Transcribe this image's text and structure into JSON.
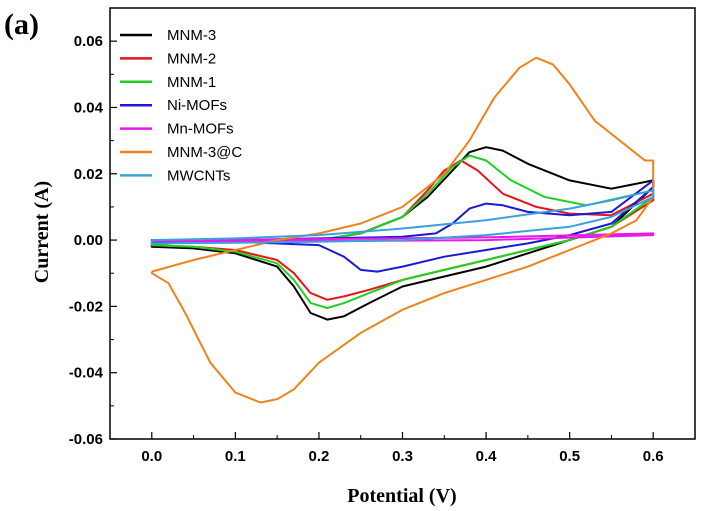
{
  "panel_label": "(a)",
  "chart_data": {
    "type": "line",
    "title": "",
    "xlabel": "Potential (V)",
    "ylabel": "Current (A)",
    "xlim": [
      -0.05,
      0.65
    ],
    "ylim": [
      -0.06,
      0.07
    ],
    "xticks": [
      0.0,
      0.1,
      0.2,
      0.3,
      0.4,
      0.5,
      0.6
    ],
    "xtick_labels": [
      "0.0",
      "0.1",
      "0.2",
      "0.3",
      "0.4",
      "0.5",
      "0.6"
    ],
    "yticks": [
      -0.06,
      -0.04,
      -0.02,
      0.0,
      0.02,
      0.04,
      0.06
    ],
    "ytick_labels": [
      "-0.06",
      "-0.04",
      "-0.02",
      "0.00",
      "0.02",
      "0.04",
      "0.06"
    ],
    "grid": false,
    "legend_position": "top-left",
    "series": [
      {
        "name": "MNM-3",
        "color": "#000000",
        "points": [
          [
            0.0,
            -0.001
          ],
          [
            0.1,
            -0.0005
          ],
          [
            0.2,
            0.0
          ],
          [
            0.25,
            0.002
          ],
          [
            0.3,
            0.007
          ],
          [
            0.33,
            0.013
          ],
          [
            0.36,
            0.021
          ],
          [
            0.38,
            0.0265
          ],
          [
            0.4,
            0.028
          ],
          [
            0.42,
            0.027
          ],
          [
            0.45,
            0.023
          ],
          [
            0.5,
            0.018
          ],
          [
            0.55,
            0.0155
          ],
          [
            0.6,
            0.018
          ],
          [
            0.6,
            0.016
          ],
          [
            0.55,
            0.004
          ],
          [
            0.5,
            0.0
          ],
          [
            0.45,
            -0.004
          ],
          [
            0.4,
            -0.008
          ],
          [
            0.35,
            -0.011
          ],
          [
            0.3,
            -0.014
          ],
          [
            0.26,
            -0.019
          ],
          [
            0.23,
            -0.023
          ],
          [
            0.21,
            -0.024
          ],
          [
            0.19,
            -0.022
          ],
          [
            0.17,
            -0.014
          ],
          [
            0.15,
            -0.008
          ],
          [
            0.1,
            -0.004
          ],
          [
            0.05,
            -0.0025
          ],
          [
            0.0,
            -0.002
          ],
          [
            0.0,
            -0.001
          ]
        ]
      },
      {
        "name": "MNM-2",
        "color": "#e8151a",
        "points": [
          [
            0.0,
            -0.001
          ],
          [
            0.1,
            -0.0005
          ],
          [
            0.2,
            0.0
          ],
          [
            0.25,
            0.002
          ],
          [
            0.3,
            0.007
          ],
          [
            0.33,
            0.015
          ],
          [
            0.35,
            0.021
          ],
          [
            0.37,
            0.024
          ],
          [
            0.39,
            0.021
          ],
          [
            0.42,
            0.014
          ],
          [
            0.46,
            0.01
          ],
          [
            0.5,
            0.008
          ],
          [
            0.55,
            0.0075
          ],
          [
            0.6,
            0.014
          ],
          [
            0.6,
            0.012
          ],
          [
            0.55,
            0.004
          ],
          [
            0.5,
            0.0
          ],
          [
            0.45,
            -0.003
          ],
          [
            0.4,
            -0.006
          ],
          [
            0.35,
            -0.009
          ],
          [
            0.3,
            -0.012
          ],
          [
            0.26,
            -0.015
          ],
          [
            0.23,
            -0.017
          ],
          [
            0.21,
            -0.018
          ],
          [
            0.19,
            -0.016
          ],
          [
            0.17,
            -0.01
          ],
          [
            0.15,
            -0.006
          ],
          [
            0.1,
            -0.003
          ],
          [
            0.05,
            -0.002
          ],
          [
            0.0,
            -0.0015
          ],
          [
            0.0,
            -0.001
          ]
        ]
      },
      {
        "name": "MNM-1",
        "color": "#1fd11f",
        "points": [
          [
            0.0,
            -0.001
          ],
          [
            0.1,
            -0.0005
          ],
          [
            0.2,
            0.0
          ],
          [
            0.25,
            0.002
          ],
          [
            0.3,
            0.007
          ],
          [
            0.33,
            0.014
          ],
          [
            0.36,
            0.022
          ],
          [
            0.38,
            0.0255
          ],
          [
            0.4,
            0.024
          ],
          [
            0.43,
            0.018
          ],
          [
            0.47,
            0.013
          ],
          [
            0.52,
            0.0105
          ],
          [
            0.6,
            0.015
          ],
          [
            0.6,
            0.013
          ],
          [
            0.55,
            0.004
          ],
          [
            0.5,
            0.0
          ],
          [
            0.45,
            -0.003
          ],
          [
            0.4,
            -0.006
          ],
          [
            0.35,
            -0.009
          ],
          [
            0.3,
            -0.012
          ],
          [
            0.26,
            -0.016
          ],
          [
            0.23,
            -0.019
          ],
          [
            0.21,
            -0.0205
          ],
          [
            0.19,
            -0.019
          ],
          [
            0.17,
            -0.012
          ],
          [
            0.15,
            -0.007
          ],
          [
            0.1,
            -0.0035
          ],
          [
            0.05,
            -0.002
          ],
          [
            0.0,
            -0.0015
          ],
          [
            0.0,
            -0.001
          ]
        ]
      },
      {
        "name": "Ni-MOFs",
        "color": "#1a1ad6",
        "points": [
          [
            0.0,
            -0.0005
          ],
          [
            0.1,
            0.0
          ],
          [
            0.2,
            0.0005
          ],
          [
            0.3,
            0.001
          ],
          [
            0.34,
            0.002
          ],
          [
            0.36,
            0.005
          ],
          [
            0.38,
            0.0095
          ],
          [
            0.4,
            0.011
          ],
          [
            0.42,
            0.0105
          ],
          [
            0.45,
            0.0085
          ],
          [
            0.5,
            0.0075
          ],
          [
            0.55,
            0.0085
          ],
          [
            0.6,
            0.018
          ],
          [
            0.6,
            0.016
          ],
          [
            0.55,
            0.005
          ],
          [
            0.5,
            0.0015
          ],
          [
            0.45,
            -0.001
          ],
          [
            0.4,
            -0.003
          ],
          [
            0.35,
            -0.005
          ],
          [
            0.3,
            -0.008
          ],
          [
            0.27,
            -0.0095
          ],
          [
            0.25,
            -0.009
          ],
          [
            0.23,
            -0.005
          ],
          [
            0.2,
            -0.0015
          ],
          [
            0.1,
            -0.0005
          ],
          [
            0.0,
            0.0
          ],
          [
            0.0,
            -0.0005
          ]
        ]
      },
      {
        "name": "Mn-MOFs",
        "color": "#e619e6",
        "points": [
          [
            0.0,
            0.0
          ],
          [
            0.2,
            0.0003
          ],
          [
            0.4,
            0.0008
          ],
          [
            0.6,
            0.002
          ],
          [
            0.6,
            0.0015
          ],
          [
            0.4,
            0.0
          ],
          [
            0.2,
            -0.0003
          ],
          [
            0.0,
            -0.0003
          ],
          [
            0.0,
            0.0
          ]
        ]
      },
      {
        "name": "MNM-3@C",
        "color": "#f0821e",
        "points": [
          [
            0.0,
            -0.0095
          ],
          [
            0.05,
            -0.006
          ],
          [
            0.1,
            -0.003
          ],
          [
            0.15,
            0.0
          ],
          [
            0.2,
            0.002
          ],
          [
            0.25,
            0.005
          ],
          [
            0.3,
            0.01
          ],
          [
            0.35,
            0.02
          ],
          [
            0.38,
            0.03
          ],
          [
            0.41,
            0.043
          ],
          [
            0.44,
            0.052
          ],
          [
            0.46,
            0.055
          ],
          [
            0.48,
            0.053
          ],
          [
            0.5,
            0.047
          ],
          [
            0.53,
            0.036
          ],
          [
            0.57,
            0.028
          ],
          [
            0.59,
            0.024
          ],
          [
            0.6,
            0.024
          ],
          [
            0.6,
            0.013
          ],
          [
            0.58,
            0.006
          ],
          [
            0.55,
            0.002
          ],
          [
            0.5,
            -0.003
          ],
          [
            0.45,
            -0.008
          ],
          [
            0.4,
            -0.012
          ],
          [
            0.35,
            -0.016
          ],
          [
            0.3,
            -0.021
          ],
          [
            0.25,
            -0.028
          ],
          [
            0.2,
            -0.037
          ],
          [
            0.17,
            -0.045
          ],
          [
            0.15,
            -0.048
          ],
          [
            0.13,
            -0.049
          ],
          [
            0.1,
            -0.046
          ],
          [
            0.07,
            -0.037
          ],
          [
            0.04,
            -0.022
          ],
          [
            0.02,
            -0.013
          ],
          [
            0.0,
            -0.01
          ],
          [
            0.0,
            -0.0095
          ]
        ]
      },
      {
        "name": "MWCNTs",
        "color": "#3aa0e0",
        "points": [
          [
            0.0,
            0.0
          ],
          [
            0.1,
            0.0005
          ],
          [
            0.2,
            0.0015
          ],
          [
            0.3,
            0.0035
          ],
          [
            0.4,
            0.006
          ],
          [
            0.5,
            0.0095
          ],
          [
            0.55,
            0.012
          ],
          [
            0.6,
            0.015
          ],
          [
            0.6,
            0.013
          ],
          [
            0.55,
            0.007
          ],
          [
            0.5,
            0.004
          ],
          [
            0.4,
            0.0015
          ],
          [
            0.3,
            0.0
          ],
          [
            0.2,
            -0.0005
          ],
          [
            0.1,
            -0.0008
          ],
          [
            0.0,
            -0.001
          ],
          [
            0.0,
            0.0
          ]
        ]
      }
    ]
  }
}
